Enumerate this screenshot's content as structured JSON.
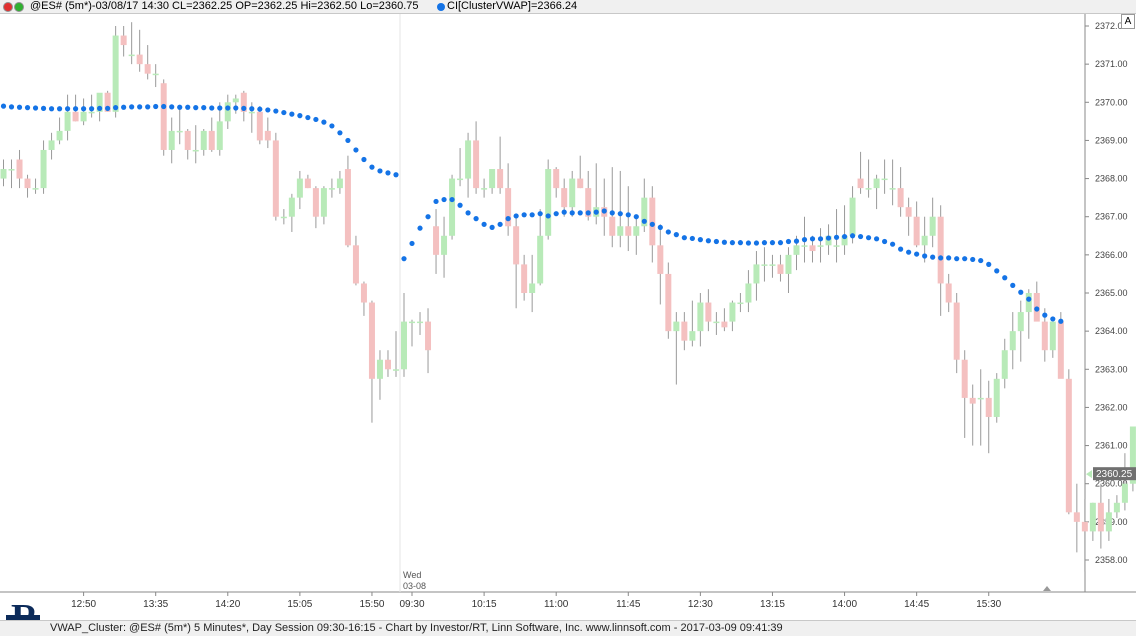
{
  "header": {
    "symbol_info": "@ES# (5m*)-03/08/17 14:30 CL=2362.25 OP=2362.25 Hi=2362.50 Lo=2360.75",
    "indicator_info": "CI[ClusterVWAP]=2366.24",
    "colors": {
      "circle1": "#e03030",
      "circle2": "#30b030",
      "indicator_dot": "#1473e6"
    }
  },
  "footer": {
    "text": "VWAP_Cluster: @ES# (5m*) 5 Minutes*, Day Session 09:30-16:15 - Chart by Investor/RT, Linn Software, Inc. www.linnsoft.com - 2017-03-09 09:41:39"
  },
  "logo_letter": "R",
  "autoscale_button": "A",
  "price_marker": "2360.25",
  "session_marker": {
    "day": "Wed",
    "date": "03-08"
  },
  "chart_data": {
    "type": "candlestick",
    "bar_interval": "5 Minutes",
    "colors": {
      "up": "#b8eab8",
      "down": "#f4c0c0",
      "wick": "#999999",
      "vwap": "#1473e6"
    },
    "ylim": [
      2357.2,
      2372.4
    ],
    "yticks": [
      "2358.00",
      "2359.00",
      "2360.00",
      "2361.00",
      "2362.00",
      "2363.00",
      "2364.00",
      "2365.00",
      "2366.00",
      "2367.00",
      "2368.00",
      "2369.00",
      "2370.00",
      "2371.00",
      "2372.00"
    ],
    "xticks": [
      {
        "label": "12:50",
        "bar": 10
      },
      {
        "label": "13:35",
        "bar": 19
      },
      {
        "label": "14:20",
        "bar": 28
      },
      {
        "label": "15:05",
        "bar": 37
      },
      {
        "label": "15:50",
        "bar": 46
      },
      {
        "label": "09:30",
        "bar": 51
      },
      {
        "label": "10:15",
        "bar": 60
      },
      {
        "label": "11:00",
        "bar": 69
      },
      {
        "label": "11:45",
        "bar": 78
      },
      {
        "label": "12:30",
        "bar": 87
      },
      {
        "label": "13:15",
        "bar": 96
      },
      {
        "label": "14:00",
        "bar": 105
      },
      {
        "label": "14:45",
        "bar": 114
      },
      {
        "label": "15:30",
        "bar": 123
      }
    ],
    "candles": [
      [
        2368.0,
        2368.5,
        2367.8,
        2368.25
      ],
      [
        2368.25,
        2368.5,
        2367.75,
        2368.25
      ],
      [
        2368.5,
        2368.75,
        2367.75,
        2368.0
      ],
      [
        2368.0,
        2368.1,
        2367.5,
        2367.75
      ],
      [
        2367.75,
        2368.0,
        2367.6,
        2367.75
      ],
      [
        2367.75,
        2369.0,
        2367.6,
        2368.75
      ],
      [
        2368.75,
        2369.2,
        2368.5,
        2369.0
      ],
      [
        2369.0,
        2369.6,
        2368.9,
        2369.25
      ],
      [
        2369.25,
        2370.2,
        2369.0,
        2369.75
      ],
      [
        2369.75,
        2370.2,
        2369.5,
        2369.5
      ],
      [
        2369.5,
        2370.1,
        2369.4,
        2369.75
      ],
      [
        2369.75,
        2370.2,
        2369.6,
        2369.75
      ],
      [
        2369.75,
        2370.2,
        2369.5,
        2370.25
      ],
      [
        2370.25,
        2370.3,
        2369.75,
        2369.75
      ],
      [
        2369.75,
        2372.0,
        2369.6,
        2371.75
      ],
      [
        2371.75,
        2372.0,
        2371.2,
        2371.5
      ],
      [
        2371.25,
        2372.1,
        2371.0,
        2371.25
      ],
      [
        2371.25,
        2371.9,
        2370.8,
        2371.0
      ],
      [
        2371.0,
        2371.5,
        2370.6,
        2370.75
      ],
      [
        2370.75,
        2371.0,
        2370.4,
        2370.75
      ],
      [
        2370.5,
        2370.6,
        2368.6,
        2368.75
      ],
      [
        2368.75,
        2369.6,
        2368.4,
        2369.25
      ],
      [
        2369.25,
        2369.9,
        2368.9,
        2369.25
      ],
      [
        2369.25,
        2369.3,
        2368.5,
        2368.75
      ],
      [
        2368.75,
        2369.4,
        2368.4,
        2368.75
      ],
      [
        2368.75,
        2369.3,
        2368.6,
        2369.25
      ],
      [
        2369.25,
        2369.6,
        2368.7,
        2368.75
      ],
      [
        2368.75,
        2370.0,
        2368.6,
        2369.5
      ],
      [
        2369.5,
        2370.2,
        2369.3,
        2370.0
      ],
      [
        2370.0,
        2370.2,
        2369.7,
        2370.1
      ],
      [
        2370.25,
        2370.3,
        2369.5,
        2369.75
      ],
      [
        2369.75,
        2370.0,
        2369.2,
        2369.75
      ],
      [
        2369.75,
        2369.9,
        2368.9,
        2369.0
      ],
      [
        2369.25,
        2369.6,
        2368.8,
        2369.0
      ],
      [
        2369.0,
        2369.2,
        2366.9,
        2367.0
      ],
      [
        2367.0,
        2367.2,
        2366.8,
        2367.0
      ],
      [
        2367.0,
        2367.6,
        2366.6,
        2367.5
      ],
      [
        2367.5,
        2368.2,
        2367.2,
        2368.0
      ],
      [
        2368.0,
        2368.1,
        2367.75,
        2367.75
      ],
      [
        2367.75,
        2367.8,
        2366.7,
        2367.0
      ],
      [
        2367.0,
        2367.8,
        2366.8,
        2367.75
      ],
      [
        2367.75,
        2368.0,
        2367.5,
        2367.75
      ],
      [
        2367.75,
        2368.2,
        2367.6,
        2368.0
      ],
      [
        2368.25,
        2368.6,
        2366.2,
        2366.25
      ],
      [
        2366.25,
        2366.5,
        2365.2,
        2365.25
      ],
      [
        2365.25,
        2365.3,
        2364.4,
        2364.75
      ],
      [
        2364.75,
        2364.8,
        2361.6,
        2362.75
      ],
      [
        2362.75,
        2363.5,
        2362.2,
        2363.25
      ],
      [
        2363.25,
        2363.5,
        2362.8,
        2363.0
      ],
      [
        2363.0,
        2364.0,
        2362.8,
        2363.0
      ],
      [
        2363.0,
        2365.0,
        2362.8,
        2364.25
      ],
      [
        2364.25,
        2364.3,
        2363.6,
        2364.25
      ],
      [
        2364.25,
        2364.5,
        2363.9,
        2364.25
      ],
      [
        2364.25,
        2364.6,
        2362.9,
        2363.5
      ],
      [
        2366.75,
        2367.2,
        2365.5,
        2366.0
      ],
      [
        2366.0,
        2367.0,
        2365.4,
        2366.5
      ],
      [
        2366.5,
        2368.1,
        2366.4,
        2368.0
      ],
      [
        2368.0,
        2368.8,
        2367.8,
        2368.0
      ],
      [
        2368.0,
        2369.2,
        2367.5,
        2369.0
      ],
      [
        2369.0,
        2369.5,
        2367.6,
        2367.75
      ],
      [
        2367.75,
        2368.0,
        2367.5,
        2367.75
      ],
      [
        2367.75,
        2368.2,
        2367.6,
        2368.25
      ],
      [
        2368.25,
        2369.1,
        2367.6,
        2367.75
      ],
      [
        2367.75,
        2368.4,
        2366.5,
        2366.75
      ],
      [
        2366.75,
        2367.0,
        2364.6,
        2365.75
      ],
      [
        2365.75,
        2366.0,
        2364.8,
        2365.0
      ],
      [
        2365.0,
        2366.0,
        2364.5,
        2365.25
      ],
      [
        2365.25,
        2367.2,
        2365.2,
        2366.5
      ],
      [
        2366.5,
        2368.5,
        2366.4,
        2368.25
      ],
      [
        2368.25,
        2368.3,
        2367.5,
        2367.75
      ],
      [
        2367.75,
        2368.0,
        2367.0,
        2367.25
      ],
      [
        2367.25,
        2368.2,
        2367.0,
        2368.0
      ],
      [
        2368.0,
        2368.6,
        2367.75,
        2367.75
      ],
      [
        2367.75,
        2368.2,
        2366.9,
        2367.0
      ],
      [
        2367.0,
        2368.4,
        2366.8,
        2367.25
      ],
      [
        2367.25,
        2368.0,
        2366.5,
        2367.0
      ],
      [
        2367.0,
        2368.3,
        2366.2,
        2366.5
      ],
      [
        2366.5,
        2368.2,
        2366.2,
        2366.75
      ],
      [
        2366.75,
        2367.8,
        2366.1,
        2366.5
      ],
      [
        2366.5,
        2367.0,
        2366.0,
        2366.75
      ],
      [
        2366.75,
        2368.0,
        2366.6,
        2367.5
      ],
      [
        2367.5,
        2367.8,
        2365.8,
        2366.25
      ],
      [
        2366.25,
        2366.8,
        2364.7,
        2365.5
      ],
      [
        2365.5,
        2365.8,
        2363.8,
        2364.0
      ],
      [
        2364.0,
        2364.5,
        2362.6,
        2364.25
      ],
      [
        2364.25,
        2364.5,
        2363.5,
        2363.75
      ],
      [
        2363.75,
        2364.8,
        2363.6,
        2364.0
      ],
      [
        2364.0,
        2365.0,
        2363.6,
        2364.75
      ],
      [
        2364.75,
        2365.1,
        2364.0,
        2364.25
      ],
      [
        2364.25,
        2364.5,
        2363.9,
        2364.25
      ],
      [
        2364.25,
        2364.6,
        2364.0,
        2364.1
      ],
      [
        2364.25,
        2364.8,
        2364.0,
        2364.75
      ],
      [
        2364.75,
        2365.0,
        2364.5,
        2364.75
      ],
      [
        2364.75,
        2365.6,
        2364.5,
        2365.25
      ],
      [
        2365.25,
        2366.1,
        2364.8,
        2365.75
      ],
      [
        2365.75,
        2366.2,
        2365.3,
        2365.75
      ],
      [
        2365.75,
        2366.0,
        2365.4,
        2365.75
      ],
      [
        2365.75,
        2366.0,
        2365.3,
        2365.5
      ],
      [
        2365.5,
        2366.2,
        2365.0,
        2366.0
      ],
      [
        2366.0,
        2366.5,
        2365.6,
        2366.25
      ],
      [
        2366.25,
        2367.0,
        2365.8,
        2366.25
      ],
      [
        2366.25,
        2366.5,
        2365.8,
        2366.1
      ],
      [
        2366.25,
        2366.7,
        2365.8,
        2366.25
      ],
      [
        2366.25,
        2366.8,
        2366.0,
        2366.5
      ],
      [
        2366.25,
        2367.2,
        2365.8,
        2366.25
      ],
      [
        2366.25,
        2367.3,
        2366.0,
        2366.5
      ],
      [
        2366.5,
        2367.8,
        2366.3,
        2367.5
      ],
      [
        2368.0,
        2368.7,
        2367.6,
        2367.75
      ],
      [
        2367.75,
        2368.5,
        2367.5,
        2367.75
      ],
      [
        2367.75,
        2368.1,
        2367.2,
        2368.0
      ],
      [
        2368.0,
        2368.5,
        2367.6,
        2368.0
      ],
      [
        2367.75,
        2368.5,
        2367.3,
        2367.75
      ],
      [
        2367.75,
        2368.3,
        2367.0,
        2367.25
      ],
      [
        2367.25,
        2367.5,
        2366.5,
        2367.0
      ],
      [
        2367.0,
        2367.4,
        2366.2,
        2366.25
      ],
      [
        2366.25,
        2367.0,
        2365.8,
        2366.5
      ],
      [
        2366.5,
        2367.5,
        2366.2,
        2367.0
      ],
      [
        2367.0,
        2367.3,
        2364.4,
        2365.25
      ],
      [
        2365.25,
        2365.5,
        2364.5,
        2364.75
      ],
      [
        2364.75,
        2365.0,
        2362.9,
        2363.25
      ],
      [
        2363.25,
        2363.5,
        2361.2,
        2362.25
      ],
      [
        2362.25,
        2362.6,
        2361.0,
        2362.1
      ],
      [
        2362.25,
        2363.0,
        2361.0,
        2362.25
      ],
      [
        2362.25,
        2362.7,
        2360.8,
        2361.75
      ],
      [
        2361.75,
        2362.9,
        2361.6,
        2362.75
      ],
      [
        2362.75,
        2363.8,
        2362.5,
        2363.5
      ],
      [
        2363.5,
        2364.5,
        2363.0,
        2364.0
      ],
      [
        2364.0,
        2364.8,
        2363.2,
        2364.5
      ],
      [
        2364.5,
        2365.1,
        2363.8,
        2365.0
      ],
      [
        2365.0,
        2365.3,
        2364.3,
        2364.25
      ],
      [
        2364.25,
        2364.6,
        2363.2,
        2363.5
      ],
      [
        2363.5,
        2364.2,
        2363.3,
        2364.25
      ],
      [
        2364.25,
        2364.5,
        2362.8,
        2362.75
      ],
      [
        2362.75,
        2363.0,
        2359.2,
        2359.25
      ],
      [
        2359.25,
        2360.0,
        2358.2,
        2359.0
      ],
      [
        2359.0,
        2359.6,
        2357.7,
        2358.75
      ],
      [
        2358.75,
        2359.5,
        2358.5,
        2359.5
      ],
      [
        2359.5,
        2360.0,
        2358.3,
        2358.75
      ],
      [
        2358.75,
        2359.6,
        2358.5,
        2359.25
      ],
      [
        2359.25,
        2359.7,
        2359.1,
        2359.5
      ],
      [
        2359.5,
        2360.8,
        2359.3,
        2360.0
      ],
      [
        2360.0,
        2361.5,
        2359.8,
        2361.5
      ]
    ],
    "vwap": [
      2369.9,
      2369.88,
      2369.87,
      2369.86,
      2369.85,
      2369.84,
      2369.83,
      2369.83,
      2369.83,
      2369.83,
      2369.83,
      2369.83,
      2369.84,
      2369.84,
      2369.86,
      2369.87,
      2369.88,
      2369.88,
      2369.88,
      2369.89,
      2369.89,
      2369.88,
      2369.87,
      2369.87,
      2369.86,
      2369.86,
      2369.85,
      2369.85,
      2369.85,
      2369.85,
      2369.84,
      2369.83,
      2369.82,
      2369.8,
      2369.77,
      2369.73,
      2369.69,
      2369.65,
      2369.6,
      2369.55,
      2369.48,
      2369.38,
      2369.2,
      2369.0,
      2368.75,
      2368.5,
      2368.3,
      2368.2,
      2368.15,
      2368.1,
      2365.9,
      2366.3,
      2366.7,
      2367.0,
      2367.4,
      2367.45,
      2367.45,
      2367.3,
      2367.1,
      2366.95,
      2366.8,
      2366.72,
      2366.8,
      2366.95,
      2367.02,
      2367.05,
      2367.05,
      2367.08,
      2367.02,
      2367.08,
      2367.12,
      2367.1,
      2367.1,
      2367.1,
      2367.12,
      2367.15,
      2367.1,
      2367.08,
      2367.05,
      2367.0,
      2366.88,
      2366.8,
      2366.72,
      2366.6,
      2366.53,
      2366.45,
      2366.43,
      2366.4,
      2366.37,
      2366.35,
      2366.33,
      2366.32,
      2366.32,
      2366.31,
      2366.31,
      2366.32,
      2366.32,
      2366.32,
      2366.35,
      2366.36,
      2366.4,
      2366.42,
      2366.42,
      2366.44,
      2366.46,
      2366.48,
      2366.5,
      2366.48,
      2366.45,
      2366.42,
      2366.35,
      2366.28,
      2366.15,
      2366.07,
      2366.02,
      2365.97,
      2365.94,
      2365.92,
      2365.92,
      2365.9,
      2365.9,
      2365.88,
      2365.85,
      2365.75,
      2365.58,
      2365.4,
      2365.2,
      2365.02,
      2364.84,
      2364.58,
      2364.42,
      2364.32,
      2364.26
    ]
  }
}
